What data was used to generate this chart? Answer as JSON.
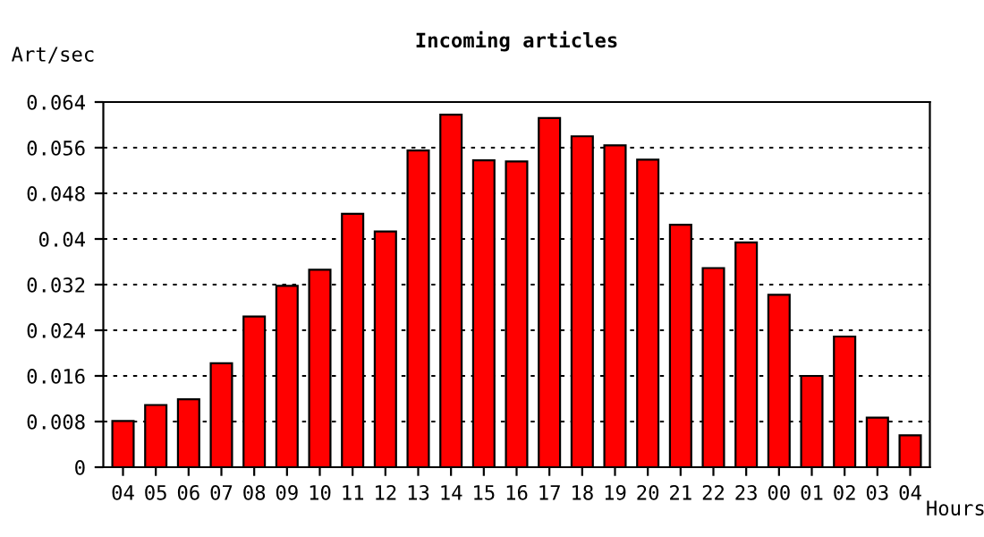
{
  "chart_data": {
    "type": "bar",
    "title": "Incoming articles",
    "xlabel": "Hours",
    "ylabel": "Art/sec",
    "categories": [
      "04",
      "05",
      "06",
      "07",
      "08",
      "09",
      "10",
      "11",
      "12",
      "13",
      "14",
      "15",
      "16",
      "17",
      "18",
      "19",
      "20",
      "21",
      "22",
      "23",
      "00",
      "01",
      "02",
      "03",
      "04"
    ],
    "series": [
      {
        "color": "#ff0000",
        "values": [
          0.0081,
          0.0109,
          0.0119,
          0.0182,
          0.0264,
          0.0318,
          0.0346,
          0.0444,
          0.0413,
          0.0555,
          0.0618,
          0.0538,
          0.0536,
          0.0612,
          0.058,
          0.0564,
          0.0539,
          0.0425,
          0.0349,
          0.0394,
          0.0302,
          0.016,
          0.0229,
          0.0087,
          0.0056
        ]
      }
    ],
    "ylim": [
      0,
      0.064
    ],
    "yticks": [
      0,
      0.008,
      0.016,
      0.024,
      0.032,
      0.04,
      0.048,
      0.056,
      0.064
    ],
    "grid": "y",
    "legend": false
  }
}
